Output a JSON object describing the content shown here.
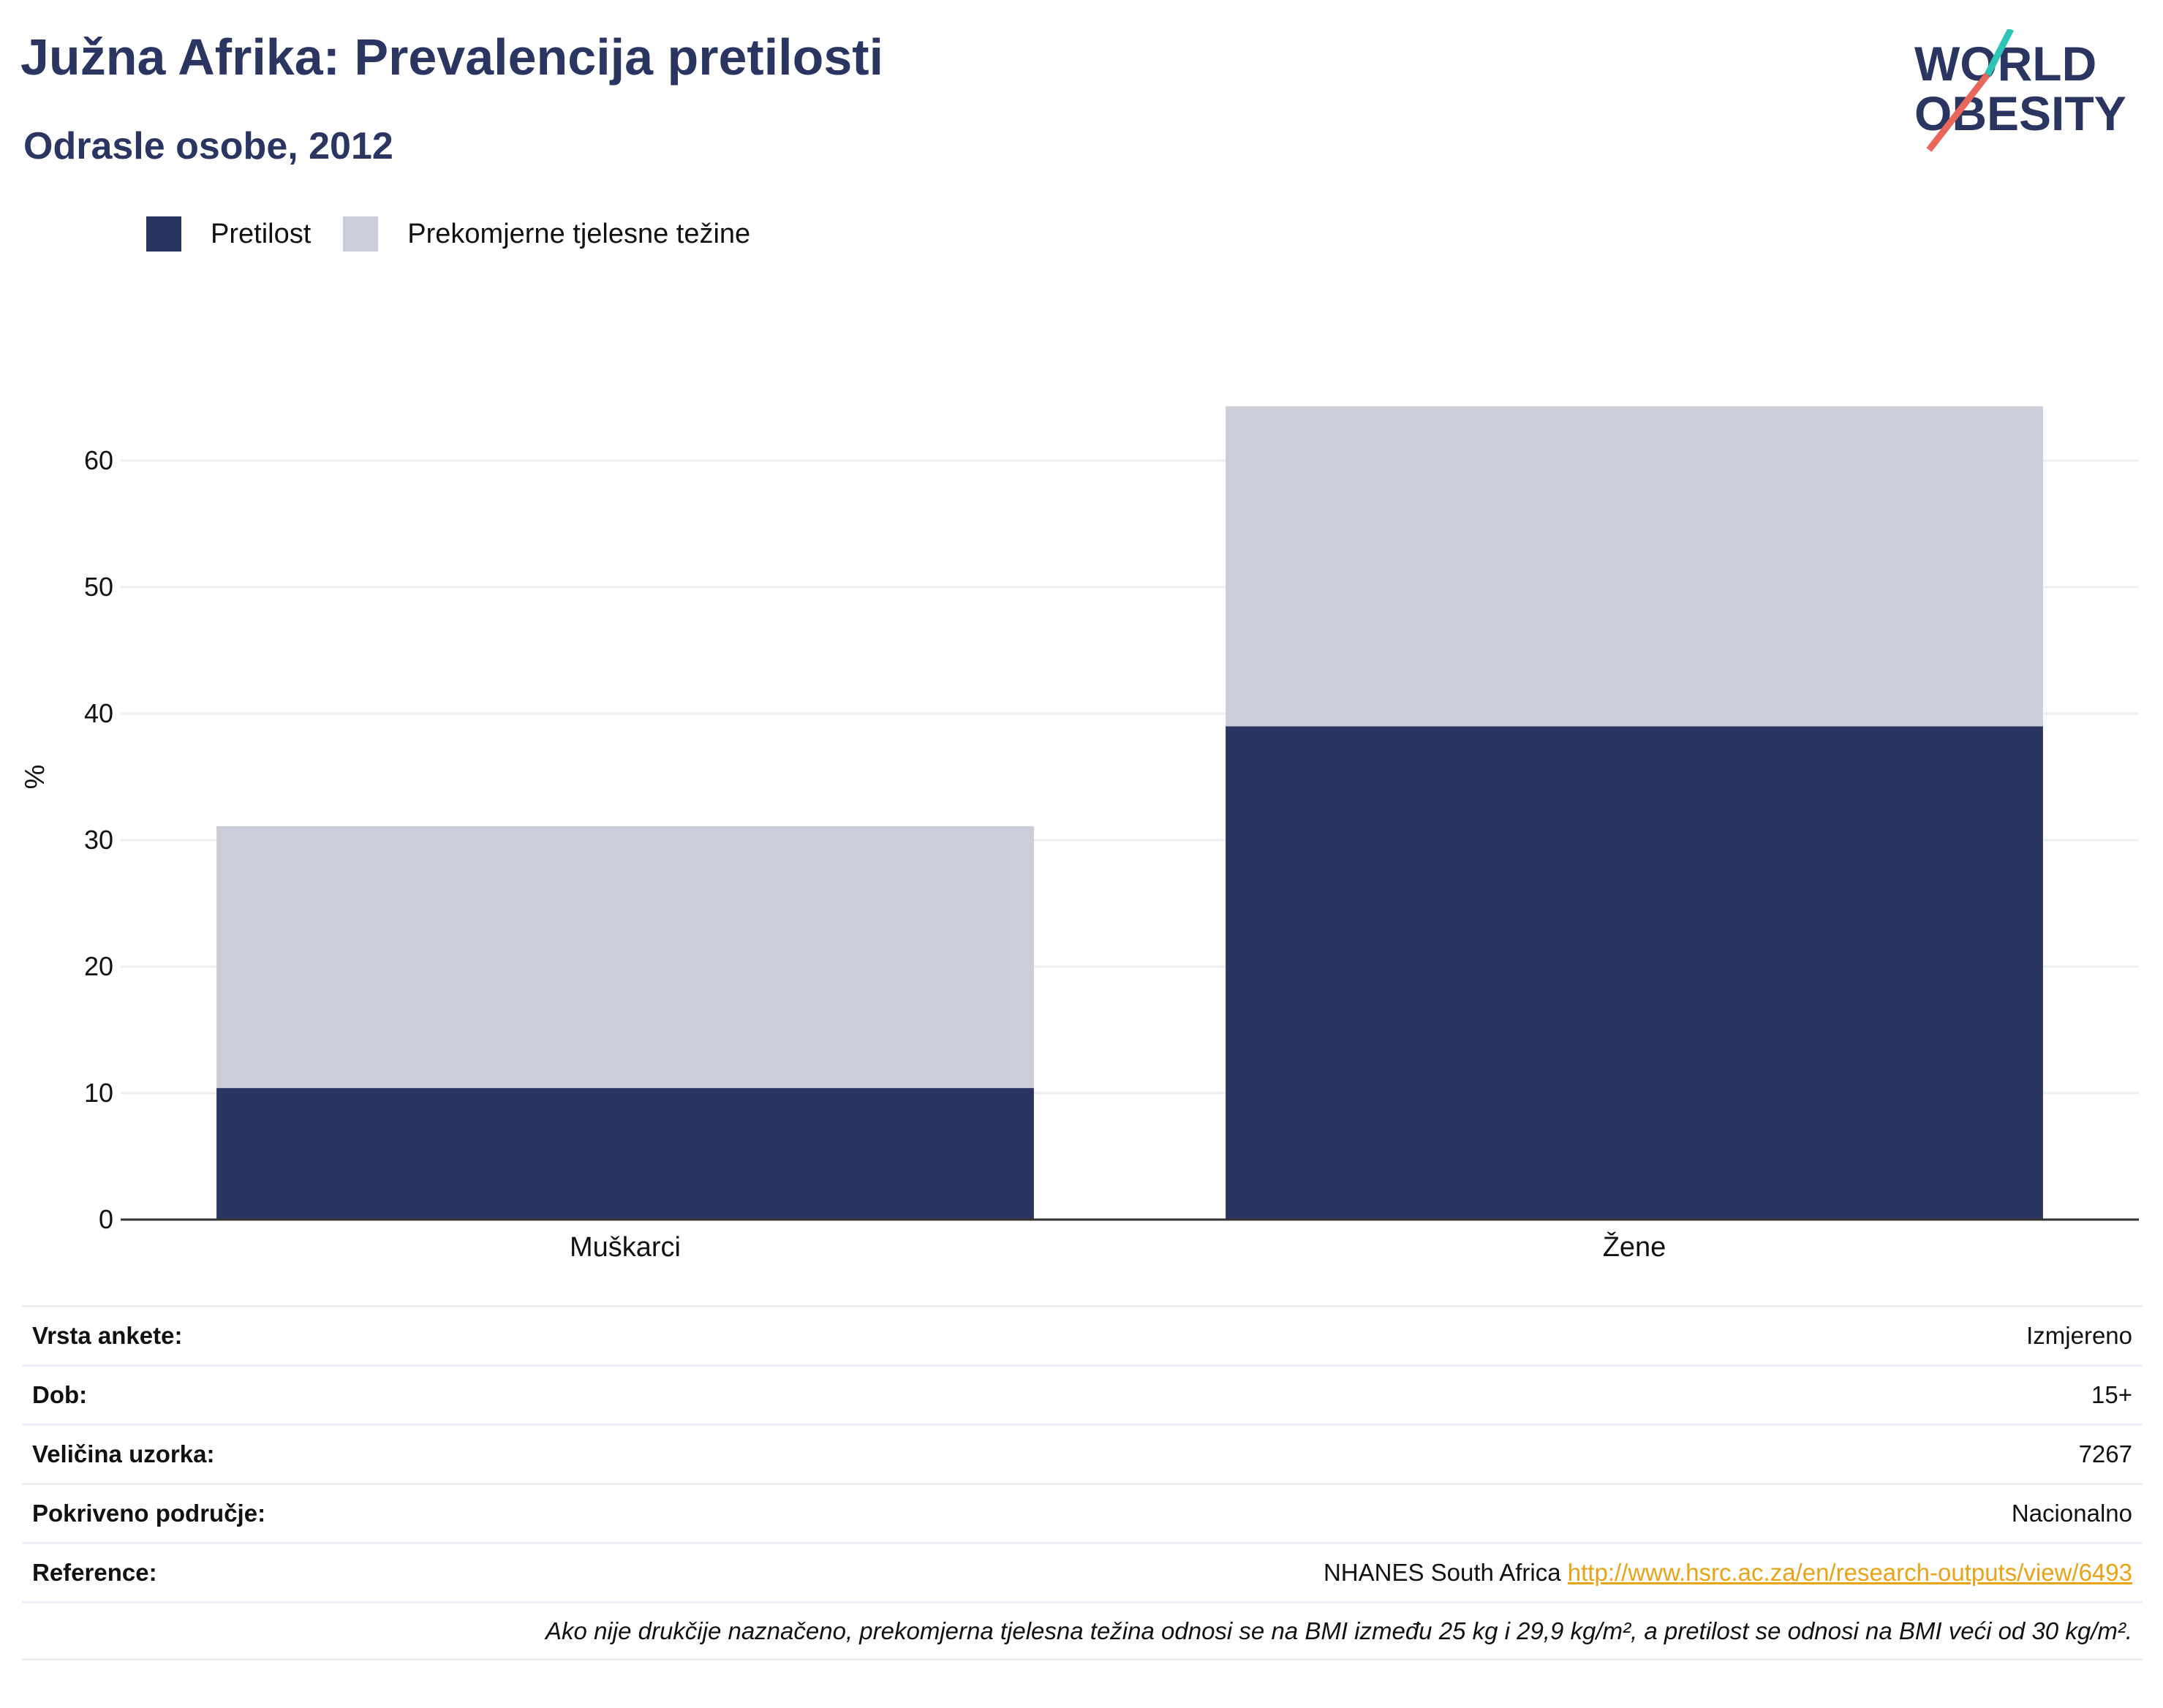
{
  "header": {
    "title": "Južna Afrika: Prevalencija pretilosti",
    "subtitle": "Odrasle osobe, 2012"
  },
  "logo": {
    "line1": "WORLD",
    "line2": "OBESITY"
  },
  "colors": {
    "obesity": "#2a3562",
    "overweight": "#cbcdd8",
    "accent_teal": "#2ec4b6",
    "accent_red": "#e8675a",
    "link": "#e8a317"
  },
  "chart_data": {
    "type": "bar",
    "stacked": true,
    "categories": [
      "Muškarci",
      "Žene"
    ],
    "series": [
      {
        "name": "Pretilost",
        "values": [
          10.4,
          39.0
        ]
      },
      {
        "name": "Prekomjerne tjelesne težine",
        "values": [
          20.7,
          25.3
        ]
      }
    ],
    "ylabel": "%",
    "ylim": [
      0,
      70
    ],
    "yticks": [
      0,
      10,
      20,
      30,
      40,
      50,
      60
    ],
    "grid": true,
    "legend_position": "top-left"
  },
  "info_table": [
    {
      "key": "Vrsta ankete:",
      "value": "Izmjereno"
    },
    {
      "key": "Dob:",
      "value": "15+"
    },
    {
      "key": "Veličina uzorka:",
      "value": "7267"
    },
    {
      "key": "Pokriveno područje:",
      "value": "Nacionalno"
    },
    {
      "key": "Reference:",
      "value": "NHANES South Africa",
      "link": "http://www.hsrc.ac.za/en/research-outputs/view/6493"
    }
  ],
  "note": "Ako nije drukčije naznačeno, prekomjerna tjelesna težina odnosi se na BMI između 25 kg i 29,9 kg/m², a pretilost se odnosi na BMI veći od 30 kg/m²."
}
